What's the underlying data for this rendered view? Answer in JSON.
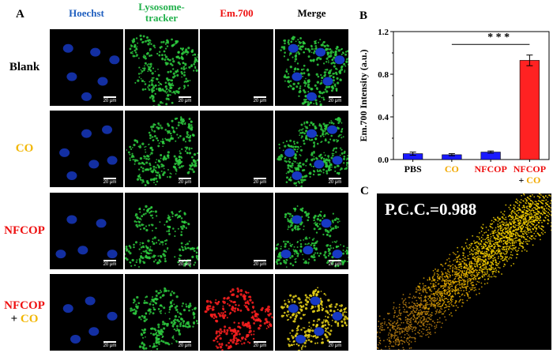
{
  "panel_a": {
    "letter": "A",
    "columns": [
      {
        "label": "Hoechst",
        "color": "#1f5fbf"
      },
      {
        "label": "Lysosome-\ntracker",
        "color": "#22b14c"
      },
      {
        "label": "Em.700",
        "color": "#ee1111"
      },
      {
        "label": "Merge",
        "color": "#000000"
      }
    ],
    "rows": [
      {
        "label_parts": [
          {
            "text": "Blank",
            "color": "#000000"
          }
        ],
        "red_signal": false
      },
      {
        "label_parts": [
          {
            "text": "CO",
            "color": "#f2b705"
          }
        ],
        "red_signal": false
      },
      {
        "label_parts": [
          {
            "text": "NFCOP",
            "color": "#ee1111"
          }
        ],
        "red_signal": false
      },
      {
        "label_parts": [
          {
            "text": "NFCOP",
            "color": "#ee1111"
          },
          {
            "text": "+ ",
            "color": "#000000"
          },
          {
            "text": "CO",
            "color": "#f2b705"
          }
        ],
        "red_signal": true
      }
    ],
    "scale_bar_label": "20 μm"
  },
  "panel_b": {
    "letter": "B",
    "significance": "* * *"
  },
  "panel_c": {
    "letter": "C",
    "pcc_label": "P.C.C.=0.988"
  },
  "chart_data": {
    "type": "bar",
    "categories": [
      "PBS",
      "CO",
      "NFCOP",
      "NFCOP\n+ CO"
    ],
    "category_colors": [
      "#000000",
      "#f2a900",
      "#ee1111",
      "#ee1111"
    ],
    "values": [
      0.055,
      0.045,
      0.07,
      0.93
    ],
    "errors": [
      0.015,
      0.01,
      0.01,
      0.05
    ],
    "bar_colors": [
      "#1a1aff",
      "#1a1aff",
      "#1a1aff",
      "#ff2222"
    ],
    "ylabel": "Em.700 Intensity (a.u.)",
    "ylim": [
      0,
      1.2
    ],
    "yticks": [
      0.0,
      0.4,
      0.8,
      1.2
    ],
    "grid": false
  }
}
